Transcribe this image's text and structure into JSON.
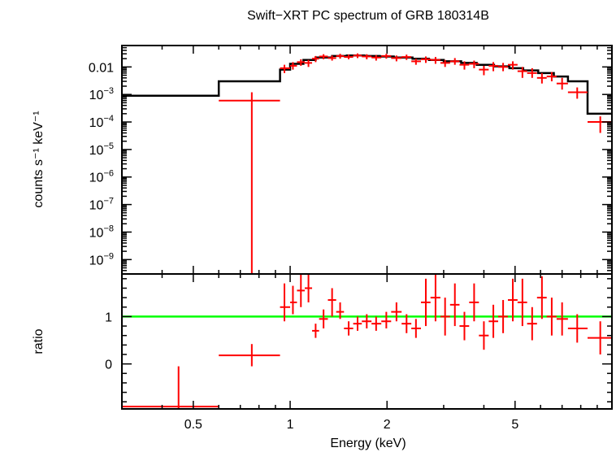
{
  "chart_data": [
    {
      "type": "scatter",
      "title": "Swift−XRT PC spectrum of GRB 180314B",
      "ylabel": "counts s⁻¹ keV⁻¹",
      "xscale": "log",
      "yscale": "log",
      "xlim": [
        0.3,
        10
      ],
      "ylim": [
        3e-10,
        0.06
      ],
      "ytick_labels": [
        {
          "value": 0.01,
          "label": "0.01"
        },
        {
          "value": 0.001,
          "base": "10",
          "exp": "−3"
        },
        {
          "value": 0.0001,
          "base": "10",
          "exp": "−4"
        },
        {
          "value": 1e-05,
          "base": "10",
          "exp": "−5"
        },
        {
          "value": 1e-06,
          "base": "10",
          "exp": "−6"
        },
        {
          "value": 1e-07,
          "base": "10",
          "exp": "−7"
        },
        {
          "value": 1e-08,
          "base": "10",
          "exp": "−8"
        },
        {
          "value": 1e-09,
          "base": "10",
          "exp": "−9"
        }
      ],
      "series": [
        {
          "kind": "data",
          "color": "#ff0000",
          "points": [
            {
              "x": 0.76,
              "xlo": 0.6,
              "xhi": 0.93,
              "y": 0.0006,
              "ylo": 1e-10,
              "yhi": 0.0012
            },
            {
              "x": 0.96,
              "xlo": 0.93,
              "xhi": 1.0,
              "y": 0.009,
              "ylo": 0.006,
              "yhi": 0.012
            },
            {
              "x": 1.02,
              "xlo": 1.0,
              "xhi": 1.05,
              "y": 0.011,
              "ylo": 0.008,
              "yhi": 0.015
            },
            {
              "x": 1.08,
              "xlo": 1.05,
              "xhi": 1.11,
              "y": 0.015,
              "ylo": 0.011,
              "yhi": 0.019
            },
            {
              "x": 1.14,
              "xlo": 1.11,
              "xhi": 1.17,
              "y": 0.014,
              "ylo": 0.01,
              "yhi": 0.018
            },
            {
              "x": 1.2,
              "xlo": 1.17,
              "xhi": 1.23,
              "y": 0.02,
              "ylo": 0.015,
              "yhi": 0.025
            },
            {
              "x": 1.27,
              "xlo": 1.23,
              "xhi": 1.31,
              "y": 0.024,
              "ylo": 0.019,
              "yhi": 0.029
            },
            {
              "x": 1.35,
              "xlo": 1.31,
              "xhi": 1.39,
              "y": 0.021,
              "ylo": 0.017,
              "yhi": 0.026
            },
            {
              "x": 1.43,
              "xlo": 1.39,
              "xhi": 1.47,
              "y": 0.025,
              "ylo": 0.02,
              "yhi": 0.03
            },
            {
              "x": 1.52,
              "xlo": 1.47,
              "xhi": 1.57,
              "y": 0.023,
              "ylo": 0.019,
              "yhi": 0.028
            },
            {
              "x": 1.62,
              "xlo": 1.57,
              "xhi": 1.67,
              "y": 0.026,
              "ylo": 0.021,
              "yhi": 0.031
            },
            {
              "x": 1.73,
              "xlo": 1.67,
              "xhi": 1.79,
              "y": 0.024,
              "ylo": 0.019,
              "yhi": 0.029
            },
            {
              "x": 1.85,
              "xlo": 1.79,
              "xhi": 1.92,
              "y": 0.022,
              "ylo": 0.017,
              "yhi": 0.027
            },
            {
              "x": 1.99,
              "xlo": 1.92,
              "xhi": 2.06,
              "y": 0.025,
              "ylo": 0.02,
              "yhi": 0.03
            },
            {
              "x": 2.14,
              "xlo": 2.06,
              "xhi": 2.22,
              "y": 0.021,
              "ylo": 0.016,
              "yhi": 0.026
            },
            {
              "x": 2.3,
              "xlo": 2.22,
              "xhi": 2.38,
              "y": 0.023,
              "ylo": 0.018,
              "yhi": 0.028
            },
            {
              "x": 2.46,
              "xlo": 2.38,
              "xhi": 2.55,
              "y": 0.016,
              "ylo": 0.012,
              "yhi": 0.02
            },
            {
              "x": 2.64,
              "xlo": 2.55,
              "xhi": 2.73,
              "y": 0.019,
              "ylo": 0.014,
              "yhi": 0.024
            },
            {
              "x": 2.83,
              "xlo": 2.73,
              "xhi": 2.93,
              "y": 0.018,
              "ylo": 0.013,
              "yhi": 0.023
            },
            {
              "x": 3.03,
              "xlo": 2.93,
              "xhi": 3.14,
              "y": 0.014,
              "ylo": 0.01,
              "yhi": 0.018
            },
            {
              "x": 3.25,
              "xlo": 3.14,
              "xhi": 3.36,
              "y": 0.016,
              "ylo": 0.012,
              "yhi": 0.021
            },
            {
              "x": 3.48,
              "xlo": 3.36,
              "xhi": 3.6,
              "y": 0.012,
              "ylo": 0.008,
              "yhi": 0.016
            },
            {
              "x": 3.73,
              "xlo": 3.6,
              "xhi": 3.86,
              "y": 0.013,
              "ylo": 0.009,
              "yhi": 0.017
            },
            {
              "x": 4.0,
              "xlo": 3.86,
              "xhi": 4.14,
              "y": 0.008,
              "ylo": 0.005,
              "yhi": 0.011
            },
            {
              "x": 4.28,
              "xlo": 4.14,
              "xhi": 4.43,
              "y": 0.011,
              "ylo": 0.007,
              "yhi": 0.015
            },
            {
              "x": 4.59,
              "xlo": 4.43,
              "xhi": 4.75,
              "y": 0.01,
              "ylo": 0.007,
              "yhi": 0.014
            },
            {
              "x": 4.92,
              "xlo": 4.75,
              "xhi": 5.09,
              "y": 0.012,
              "ylo": 0.008,
              "yhi": 0.016
            },
            {
              "x": 5.27,
              "xlo": 5.09,
              "xhi": 5.45,
              "y": 0.007,
              "ylo": 0.004,
              "yhi": 0.01
            },
            {
              "x": 5.65,
              "xlo": 5.45,
              "xhi": 5.85,
              "y": 0.006,
              "ylo": 0.004,
              "yhi": 0.009
            },
            {
              "x": 6.06,
              "xlo": 5.85,
              "xhi": 6.27,
              "y": 0.004,
              "ylo": 0.0025,
              "yhi": 0.006
            },
            {
              "x": 6.5,
              "xlo": 6.27,
              "xhi": 6.73,
              "y": 0.0045,
              "ylo": 0.003,
              "yhi": 0.0065
            },
            {
              "x": 7.0,
              "xlo": 6.73,
              "xhi": 7.3,
              "y": 0.0025,
              "ylo": 0.0015,
              "yhi": 0.004
            },
            {
              "x": 7.8,
              "xlo": 7.3,
              "xhi": 8.4,
              "y": 0.0012,
              "ylo": 0.0007,
              "yhi": 0.0018
            },
            {
              "x": 9.2,
              "xlo": 8.4,
              "xhi": 10.0,
              "y": 0.0001,
              "ylo": 4e-05,
              "yhi": 0.00016
            }
          ]
        },
        {
          "kind": "model",
          "color": "#000000",
          "steps": [
            {
              "x0": 0.3,
              "x1": 0.6,
              "y": 0.0009
            },
            {
              "x0": 0.6,
              "x1": 0.93,
              "y": 0.003
            },
            {
              "x0": 0.93,
              "x1": 1.0,
              "y": 0.008
            },
            {
              "x0": 1.0,
              "x1": 1.1,
              "y": 0.013
            },
            {
              "x0": 1.1,
              "x1": 1.2,
              "y": 0.018
            },
            {
              "x0": 1.2,
              "x1": 1.35,
              "y": 0.022
            },
            {
              "x0": 1.35,
              "x1": 1.5,
              "y": 0.025
            },
            {
              "x0": 1.5,
              "x1": 1.7,
              "y": 0.026
            },
            {
              "x0": 1.7,
              "x1": 1.9,
              "y": 0.025
            },
            {
              "x0": 1.9,
              "x1": 2.1,
              "y": 0.024
            },
            {
              "x0": 2.1,
              "x1": 2.4,
              "y": 0.022
            },
            {
              "x0": 2.4,
              "x1": 2.7,
              "y": 0.02
            },
            {
              "x0": 2.7,
              "x1": 3.0,
              "y": 0.018
            },
            {
              "x0": 3.0,
              "x1": 3.4,
              "y": 0.016
            },
            {
              "x0": 3.4,
              "x1": 3.8,
              "y": 0.014
            },
            {
              "x0": 3.8,
              "x1": 4.3,
              "y": 0.012
            },
            {
              "x0": 4.3,
              "x1": 4.8,
              "y": 0.0105
            },
            {
              "x0": 4.8,
              "x1": 5.3,
              "y": 0.009
            },
            {
              "x0": 5.3,
              "x1": 5.9,
              "y": 0.0075
            },
            {
              "x0": 5.9,
              "x1": 6.6,
              "y": 0.006
            },
            {
              "x0": 6.6,
              "x1": 7.3,
              "y": 0.0045
            },
            {
              "x0": 7.3,
              "x1": 8.4,
              "y": 0.003
            },
            {
              "x0": 8.4,
              "x1": 10.0,
              "y": 0.0002
            }
          ]
        }
      ]
    },
    {
      "type": "scatter",
      "ylabel": "ratio",
      "xlabel": "Energy (keV)",
      "xscale": "log",
      "xlim": [
        0.3,
        10
      ],
      "ylim": [
        -0.95,
        1.9
      ],
      "xtick_labels": [
        {
          "value": 0.5,
          "label": "0.5"
        },
        {
          "value": 1,
          "label": "1"
        },
        {
          "value": 2,
          "label": "2"
        },
        {
          "value": 5,
          "label": "5"
        }
      ],
      "ytick_labels": [
        {
          "value": 1,
          "label": "1"
        },
        {
          "value": 0,
          "label": "0"
        }
      ],
      "reference_line": {
        "y": 1,
        "color": "#00ff00"
      },
      "series": [
        {
          "kind": "ratio",
          "color": "#ff0000",
          "points": [
            {
              "x": 0.45,
              "xlo": 0.3,
              "xhi": 0.6,
              "y": -0.9,
              "ylo": -0.95,
              "yhi": -0.05
            },
            {
              "x": 0.76,
              "xlo": 0.6,
              "xhi": 0.93,
              "y": 0.18,
              "ylo": -0.05,
              "yhi": 0.42
            },
            {
              "x": 0.96,
              "xlo": 0.93,
              "xhi": 1.0,
              "y": 1.2,
              "ylo": 0.9,
              "yhi": 1.7
            },
            {
              "x": 1.02,
              "xlo": 1.0,
              "xhi": 1.05,
              "y": 1.3,
              "ylo": 1.05,
              "yhi": 1.65
            },
            {
              "x": 1.08,
              "xlo": 1.05,
              "xhi": 1.11,
              "y": 1.55,
              "ylo": 1.2,
              "yhi": 1.9
            },
            {
              "x": 1.14,
              "xlo": 1.11,
              "xhi": 1.17,
              "y": 1.6,
              "ylo": 1.3,
              "yhi": 1.9
            },
            {
              "x": 1.2,
              "xlo": 1.17,
              "xhi": 1.23,
              "y": 0.7,
              "ylo": 0.55,
              "yhi": 0.85
            },
            {
              "x": 1.27,
              "xlo": 1.23,
              "xhi": 1.31,
              "y": 0.95,
              "ylo": 0.75,
              "yhi": 1.15
            },
            {
              "x": 1.35,
              "xlo": 1.31,
              "xhi": 1.39,
              "y": 1.35,
              "ylo": 1.0,
              "yhi": 1.6
            },
            {
              "x": 1.43,
              "xlo": 1.39,
              "xhi": 1.47,
              "y": 1.1,
              "ylo": 0.95,
              "yhi": 1.3
            },
            {
              "x": 1.52,
              "xlo": 1.47,
              "xhi": 1.57,
              "y": 0.75,
              "ylo": 0.6,
              "yhi": 0.9
            },
            {
              "x": 1.62,
              "xlo": 1.57,
              "xhi": 1.67,
              "y": 0.85,
              "ylo": 0.7,
              "yhi": 1.0
            },
            {
              "x": 1.73,
              "xlo": 1.67,
              "xhi": 1.79,
              "y": 0.9,
              "ylo": 0.75,
              "yhi": 1.05
            },
            {
              "x": 1.85,
              "xlo": 1.79,
              "xhi": 1.92,
              "y": 0.85,
              "ylo": 0.7,
              "yhi": 1.0
            },
            {
              "x": 1.99,
              "xlo": 1.92,
              "xhi": 2.06,
              "y": 0.9,
              "ylo": 0.75,
              "yhi": 1.1
            },
            {
              "x": 2.14,
              "xlo": 2.06,
              "xhi": 2.22,
              "y": 1.1,
              "ylo": 0.9,
              "yhi": 1.3
            },
            {
              "x": 2.3,
              "xlo": 2.22,
              "xhi": 2.38,
              "y": 0.85,
              "ylo": 0.65,
              "yhi": 1.05
            },
            {
              "x": 2.46,
              "xlo": 2.38,
              "xhi": 2.55,
              "y": 0.75,
              "ylo": 0.55,
              "yhi": 0.95
            },
            {
              "x": 2.64,
              "xlo": 2.55,
              "xhi": 2.73,
              "y": 1.3,
              "ylo": 0.8,
              "yhi": 1.8
            },
            {
              "x": 2.83,
              "xlo": 2.73,
              "xhi": 2.93,
              "y": 1.4,
              "ylo": 0.9,
              "yhi": 1.9
            },
            {
              "x": 3.03,
              "xlo": 2.93,
              "xhi": 3.14,
              "y": 1.0,
              "ylo": 0.6,
              "yhi": 1.4
            },
            {
              "x": 3.25,
              "xlo": 3.14,
              "xhi": 3.36,
              "y": 1.25,
              "ylo": 0.8,
              "yhi": 1.7
            },
            {
              "x": 3.48,
              "xlo": 3.36,
              "xhi": 3.6,
              "y": 0.8,
              "ylo": 0.5,
              "yhi": 1.1
            },
            {
              "x": 3.73,
              "xlo": 3.6,
              "xhi": 3.86,
              "y": 1.3,
              "ylo": 0.9,
              "yhi": 1.7
            },
            {
              "x": 4.0,
              "xlo": 3.86,
              "xhi": 4.14,
              "y": 0.6,
              "ylo": 0.3,
              "yhi": 0.9
            },
            {
              "x": 4.28,
              "xlo": 4.14,
              "xhi": 4.43,
              "y": 0.9,
              "ylo": 0.55,
              "yhi": 1.25
            },
            {
              "x": 4.59,
              "xlo": 4.43,
              "xhi": 4.75,
              "y": 1.0,
              "ylo": 0.65,
              "yhi": 1.35
            },
            {
              "x": 4.92,
              "xlo": 4.75,
              "xhi": 5.09,
              "y": 1.35,
              "ylo": 0.9,
              "yhi": 1.8
            },
            {
              "x": 5.27,
              "xlo": 5.09,
              "xhi": 5.45,
              "y": 1.3,
              "ylo": 0.8,
              "yhi": 1.8
            },
            {
              "x": 5.65,
              "xlo": 5.45,
              "xhi": 5.85,
              "y": 0.85,
              "ylo": 0.5,
              "yhi": 1.2
            },
            {
              "x": 6.06,
              "xlo": 5.85,
              "xhi": 6.27,
              "y": 1.4,
              "ylo": 0.95,
              "yhi": 1.85
            },
            {
              "x": 6.5,
              "xlo": 6.27,
              "xhi": 6.73,
              "y": 1.0,
              "ylo": 0.6,
              "yhi": 1.4
            },
            {
              "x": 7.0,
              "xlo": 6.73,
              "xhi": 7.3,
              "y": 0.95,
              "ylo": 0.6,
              "yhi": 1.3
            },
            {
              "x": 7.8,
              "xlo": 7.3,
              "xhi": 8.4,
              "y": 0.75,
              "ylo": 0.45,
              "yhi": 1.05
            },
            {
              "x": 9.2,
              "xlo": 8.4,
              "xhi": 10.0,
              "y": 0.55,
              "ylo": 0.2,
              "yhi": 0.9
            }
          ]
        }
      ]
    }
  ]
}
